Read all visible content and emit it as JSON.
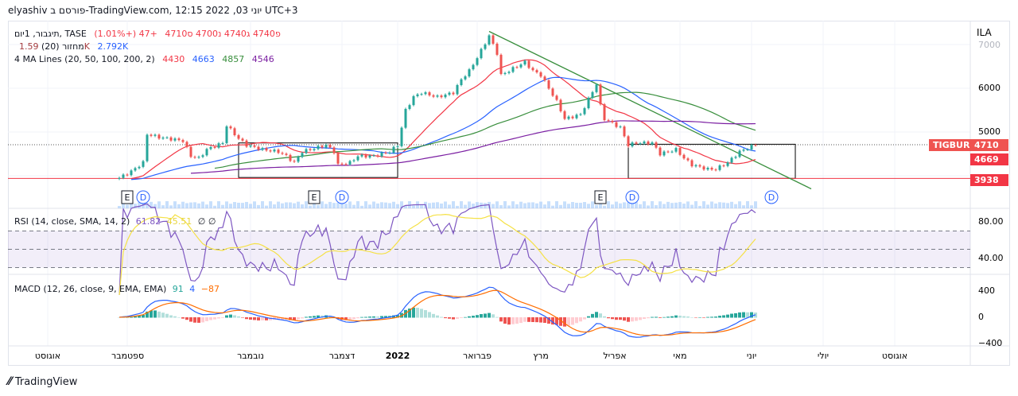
{
  "header": {
    "caption": "elyashiv פורסם ב-TradingView.com, 12:15 2022 ,03 יוני UTC+3"
  },
  "legend": {
    "symbol": "תיגבור, 1יום, TASE",
    "ohlc": "פ4740  ג4740  נ4700  ס4710",
    "change": "+47 (+1.01%)",
    "volume_label": "מחזור (20)",
    "volume_value": "1.59K",
    "volume_ma": "2.792K",
    "ma_label": "4 MA Lines (20, 50, 100, 200, 2)",
    "ma_values": [
      "4430",
      "4663",
      "4857",
      "4546"
    ]
  },
  "rsi_legend": {
    "label": "RSI (14, close, SMA, 14, 2)",
    "rsi": "61.82",
    "sma": "45.51",
    "extra": "∅  ∅"
  },
  "macd_legend": {
    "label": "MACD (12, 26, close, 9, EMA, EMA)",
    "hist": "91",
    "macd": "4",
    "signal": "−87"
  },
  "price_axis": {
    "currency": "ILA",
    "ticks": [
      "7000",
      "6000",
      "5000"
    ]
  },
  "price_labels": {
    "symbol_tag": "TIGBUR",
    "last": "4710",
    "ma": "4669",
    "support": "3938"
  },
  "rsi_axis": [
    "80.00",
    "40.00"
  ],
  "macd_axis": [
    "400",
    "0",
    "−400"
  ],
  "time_axis": [
    "אוגוסט",
    "ספטמבר",
    "נובמבר",
    "דצמבר",
    "2022",
    "פברואר",
    "מרץ",
    "אפריל",
    "מאי",
    "יוני",
    "יולי",
    "אוגוסט"
  ],
  "markers": {
    "earnings": "E",
    "dividend": "D"
  },
  "footer": {
    "brand": "TradingView"
  },
  "colors": {
    "up": "#26a69a",
    "down": "#ef5350",
    "ma20": "#f23645",
    "ma50": "#2962ff",
    "ma100": "#388e3c",
    "ma200": "#7b1fa2",
    "rsi": "#7e57c2",
    "rsi_sma": "#f5e146",
    "macd": "#2962ff",
    "signal": "#ff6d00"
  },
  "chart_data": {
    "type": "candlestick",
    "title": "TIGBUR, 1D, TASE",
    "ylabel": "ILA",
    "ylim": [
      3700,
      7400
    ],
    "close_keypoints": [
      [
        0,
        3950
      ],
      [
        3,
        4100
      ],
      [
        6,
        4300
      ],
      [
        7,
        4950
      ],
      [
        10,
        4880
      ],
      [
        16,
        4800
      ],
      [
        18,
        4450
      ],
      [
        20,
        4400
      ],
      [
        22,
        4600
      ],
      [
        26,
        4750
      ],
      [
        27,
        5150
      ],
      [
        30,
        4850
      ],
      [
        32,
        4700
      ],
      [
        36,
        4600
      ],
      [
        40,
        4550
      ],
      [
        42,
        4450
      ],
      [
        44,
        4300
      ],
      [
        46,
        4550
      ],
      [
        50,
        4650
      ],
      [
        52,
        4700
      ],
      [
        54,
        4550
      ],
      [
        55,
        4250
      ],
      [
        58,
        4300
      ],
      [
        60,
        4450
      ],
      [
        64,
        4450
      ],
      [
        68,
        4550
      ],
      [
        70,
        4700
      ],
      [
        71,
        5100
      ],
      [
        72,
        5500
      ],
      [
        74,
        5800
      ],
      [
        76,
        5900
      ],
      [
        80,
        5800
      ],
      [
        84,
        5900
      ],
      [
        86,
        6200
      ],
      [
        88,
        6400
      ],
      [
        90,
        6700
      ],
      [
        93,
        7200
      ],
      [
        95,
        6800
      ],
      [
        96,
        6300
      ],
      [
        100,
        6500
      ],
      [
        102,
        6600
      ],
      [
        104,
        6400
      ],
      [
        106,
        6300
      ],
      [
        108,
        6000
      ],
      [
        110,
        5700
      ],
      [
        112,
        5300
      ],
      [
        116,
        5400
      ],
      [
        120,
        6100
      ],
      [
        121,
        5600
      ],
      [
        122,
        5300
      ],
      [
        124,
        5200
      ],
      [
        126,
        5100
      ],
      [
        128,
        4700
      ],
      [
        130,
        4750
      ],
      [
        134,
        4750
      ],
      [
        136,
        4500
      ],
      [
        140,
        4600
      ],
      [
        142,
        4400
      ],
      [
        144,
        4250
      ],
      [
        148,
        4150
      ],
      [
        150,
        4150
      ],
      [
        153,
        4300
      ],
      [
        156,
        4550
      ],
      [
        160,
        4710
      ]
    ],
    "support_level": 3938,
    "trendline": [
      [
        93,
        7300
      ],
      [
        174,
        3700
      ]
    ],
    "ranges": [
      {
        "from": 30,
        "to": 70,
        "high": 4750,
        "low": 3960
      },
      {
        "from": 128,
        "to": 170,
        "high": 4720,
        "low": 3940
      }
    ],
    "earnings_bars": [
      2,
      49,
      121
    ],
    "dividend_bars": [
      6,
      56,
      129,
      164
    ]
  }
}
